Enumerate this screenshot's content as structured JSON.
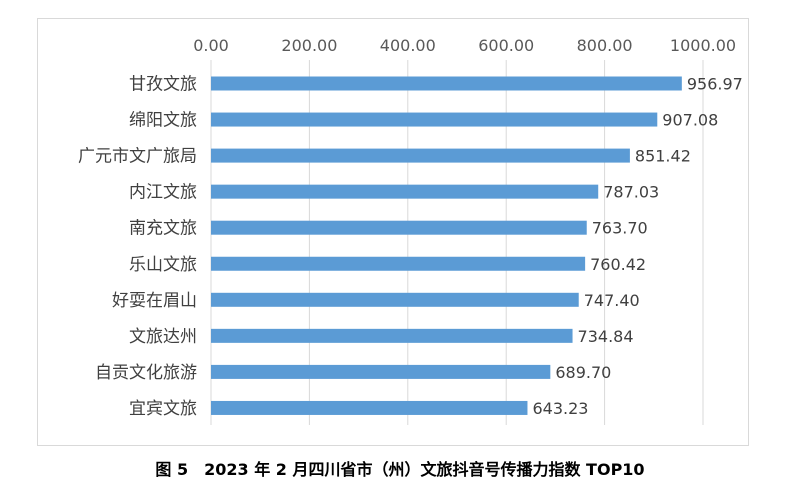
{
  "caption": "图 5　2023 年 2 月四川省市（州）文旅抖音号传播力指数 TOP10",
  "chart_data": {
    "type": "bar",
    "orientation": "horizontal",
    "categories": [
      "甘孜文旅",
      "绵阳文旅",
      "广元市文广旅局",
      "内江文旅",
      "南充文旅",
      "乐山文旅",
      "好耍在眉山",
      "文旅达州",
      "自贡文化旅游",
      "宜宾文旅"
    ],
    "values": [
      956.97,
      907.08,
      851.42,
      787.03,
      763.7,
      760.42,
      747.4,
      734.84,
      689.7,
      643.23
    ],
    "value_labels": [
      "956.97",
      "907.08",
      "851.42",
      "787.03",
      "763.70",
      "760.42",
      "747.40",
      "734.84",
      "689.70",
      "643.23"
    ],
    "ticks": [
      "0.00",
      "200.00",
      "400.00",
      "600.00",
      "800.00",
      "1000.00"
    ],
    "xlim": [
      0,
      1000
    ],
    "axis_position": "top",
    "grid": true,
    "bar_color": "#5b9bd5",
    "grid_color": "#d9d9d9"
  }
}
